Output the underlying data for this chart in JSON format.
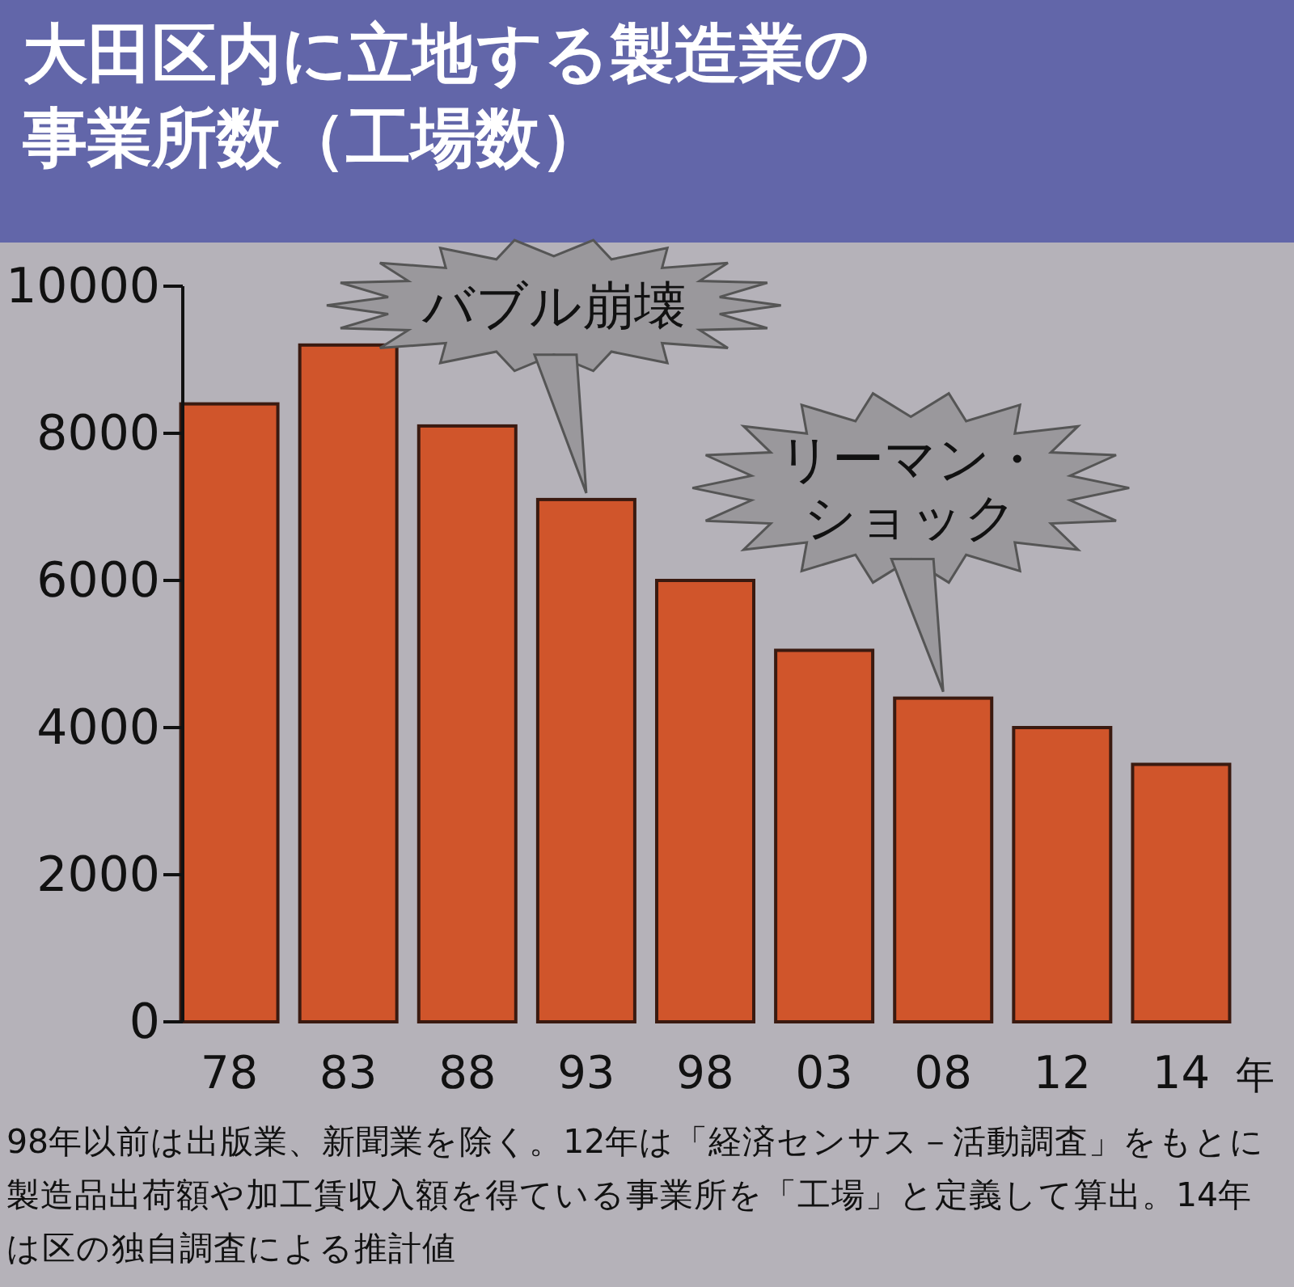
{
  "chart_data": {
    "type": "bar",
    "title": "大田区内に立地する製造業の事業所数（工場数）",
    "categories": [
      "78",
      "83",
      "88",
      "93",
      "98",
      "03",
      "08",
      "12",
      "14"
    ],
    "values": [
      8400,
      9200,
      8100,
      7100,
      6000,
      5050,
      4400,
      4000,
      3500
    ],
    "color": "#d0552b",
    "xlabel": "年",
    "ylim": [
      0,
      10000
    ],
    "yticks": [
      0,
      2000,
      4000,
      6000,
      8000,
      10000
    ],
    "grid": false,
    "annotations": [
      {
        "text": "バブル崩壊",
        "x": "93",
        "y": 7100
      },
      {
        "text": "リーマン・ショック",
        "x": "08",
        "y": 4400
      },
      "98年以前は出版業、新聞業を除く。12年は「経済センサス－活動調査」をもとに製造品出荷額や加工賃収入額を得ている事業所を「工場」と定義して算出。14年は区の独自調査による推計値"
    ]
  }
}
